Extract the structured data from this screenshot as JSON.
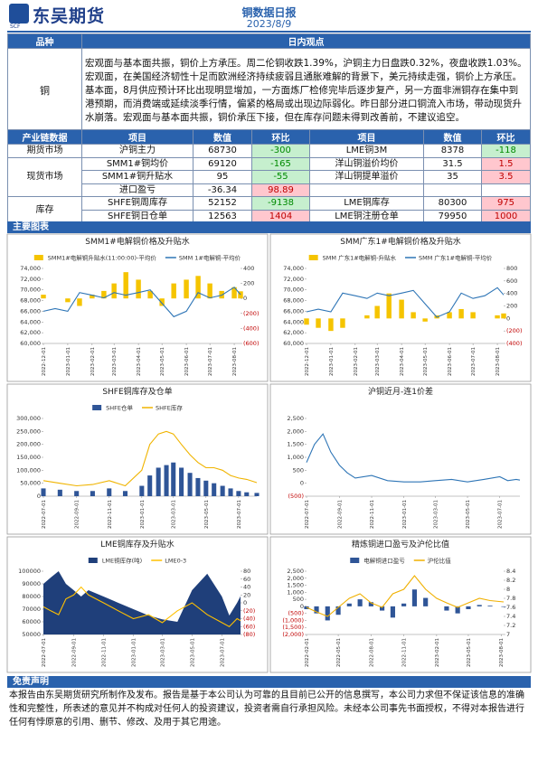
{
  "header": {
    "logo": "东吴期货",
    "logo_sub": "SCF",
    "title": "铜数据日报",
    "date": "2023/8/9"
  },
  "view_table": {
    "headers": [
      "品种",
      "日内观点"
    ],
    "rows": [
      [
        "铜",
        "宏观面与基本面共振，铜价上方承压。周二伦铜收跌1.39%，沪铜主力日盘跌0.32%，夜盘收跌1.03%。宏观面，在美国经济韧性十足而欧洲经济持续疲弱且通胀难解的背景下，美元持续走强，铜价上方承压。基本面，8月供应预计环比出现明显增加，一方面炼厂检修完毕后逐步复产，另一方面非洲铜存在集中到港预期，而消费端或延续淡季行情，偏紧的格局或出现边际弱化。昨日部分进口铜流入市场，带动现货升水崩落。宏观面与基本面共振，铜价承压下接，但在库存问题未得到改善前，不建议追空。"
      ]
    ]
  },
  "data_table": {
    "headers": [
      "产业链数据",
      "项目",
      "数值",
      "环比",
      "项目",
      "数值",
      "环比"
    ],
    "up_color": "#c00000",
    "up_bg": "#ffc7ce",
    "down_color": "#008a00",
    "down_bg": "#c6efce",
    "groups": [
      {
        "name": "期货市场",
        "rows": [
          [
            "沪铜主力",
            68730,
            -300,
            "LME铜3M",
            8378,
            -118
          ]
        ]
      },
      {
        "name": "现货市场",
        "rows": [
          [
            "SMM1#铜均价",
            69120,
            -165,
            "洋山铜溢价均价",
            31.5,
            1.5
          ],
          [
            "SMM1#铜升贴水",
            95,
            -55,
            "洋山铜提单溢价",
            35,
            3.5
          ],
          [
            "进口盈亏",
            -36.34,
            98.89
          ]
        ]
      },
      {
        "name": "库存",
        "rows": [
          [
            "SHFE铜周库存",
            52152,
            -9138,
            "LME铜库存",
            80300,
            975
          ],
          [
            "SHFE铜日仓单",
            12563,
            1404,
            "LME铜注册仓单",
            79950,
            1000
          ]
        ]
      }
    ]
  },
  "section_title": "主要图表",
  "chart_data": [
    {
      "type": "combo",
      "title": "SMM1#电解铜价格及升贴水",
      "x": [
        "2022-12-01",
        "2022-12-16",
        "2023-01-01",
        "2023-01-16",
        "2023-02-01",
        "2023-02-16",
        "2023-03-01",
        "2023-03-16",
        "2023-04-01",
        "2023-04-16",
        "2023-05-01",
        "2023-05-16",
        "2023-06-01",
        "2023-06-16",
        "2023-07-01",
        "2023-07-16",
        "2023-08-01",
        "2023-08-09"
      ],
      "xlim": [
        "2022-12-01",
        "2023-08-09"
      ],
      "xticks": [
        "2022-12-01",
        "2023-01-01",
        "2023-02-01",
        "2023-03-01",
        "2023-04-01",
        "2023-05-01",
        "2023-06-01",
        "2023-07-01",
        "2023-08-01"
      ],
      "series": [
        {
          "name": "SMM1#电解铜升贴水(11:00:00)-平均价",
          "type": "bar",
          "axis": "y2",
          "color": "#f5c400",
          "values": [
            50,
            0,
            -50,
            -100,
            50,
            100,
            200,
            350,
            250,
            100,
            -100,
            200,
            250,
            300,
            200,
            100,
            150,
            95
          ]
        },
        {
          "name": "SMM 1#电解铜-平均价",
          "type": "line",
          "color": "#2e75b6",
          "values": [
            66000,
            66500,
            66000,
            69500,
            69000,
            68500,
            69500,
            69000,
            69500,
            70000,
            67500,
            65000,
            66000,
            69500,
            68500,
            69000,
            70500,
            69120
          ]
        }
      ],
      "ylim": [
        60000,
        74000
      ],
      "yticks": [
        {
          "value": 60000,
          "label": "60,000"
        },
        {
          "value": 62000,
          "label": "62,000"
        },
        {
          "value": 64000,
          "label": "64,000"
        },
        {
          "value": 66000,
          "label": "66,000"
        },
        {
          "value": 68000,
          "label": "68,000"
        },
        {
          "value": 70000,
          "label": "70,000"
        },
        {
          "value": 72000,
          "label": "72,000"
        },
        {
          "value": 74000,
          "label": "74,000"
        }
      ],
      "y2lim": [
        -600,
        400
      ],
      "y2ticks": [
        {
          "value": -600,
          "label": "(600)"
        },
        {
          "value": -400,
          "label": "(400)"
        },
        {
          "value": -200,
          "label": "(200)"
        },
        0,
        200,
        400
      ]
    },
    {
      "type": "combo",
      "title": "SMM广东1#电解铜价格及升贴水",
      "x": [
        "2022-12-01",
        "2022-12-16",
        "2023-01-01",
        "2023-01-16",
        "2023-02-01",
        "2023-02-16",
        "2023-03-01",
        "2023-03-16",
        "2023-04-01",
        "2023-04-16",
        "2023-05-01",
        "2023-05-16",
        "2023-06-01",
        "2023-06-16",
        "2023-07-01",
        "2023-07-16",
        "2023-08-01",
        "2023-08-09"
      ],
      "xlim": [
        "2022-12-01",
        "2023-08-09"
      ],
      "xticks": [
        "2022-12-01",
        "2023-01-01",
        "2023-02-01",
        "2023-03-01",
        "2023-04-01",
        "2023-05-01",
        "2023-06-01",
        "2023-07-01",
        "2023-08-01"
      ],
      "series": [
        {
          "name": "SMM 广东1#电解铜-升贴水",
          "type": "bar",
          "axis": "y2",
          "color": "#f5c400",
          "values": [
            -100,
            -150,
            -200,
            -150,
            0,
            50,
            200,
            400,
            300,
            100,
            -50,
            50,
            100,
            150,
            100,
            0,
            50,
            80
          ]
        },
        {
          "name": "SMM 广东1#电解铜-平均价",
          "type": "line",
          "color": "#2e75b6",
          "values": [
            65900,
            66400,
            65900,
            69400,
            68900,
            68400,
            69400,
            68900,
            69400,
            69900,
            67400,
            64900,
            65900,
            69400,
            68400,
            68900,
            70400,
            69050
          ]
        }
      ],
      "ylim": [
        60000,
        74000
      ],
      "yticks": [
        {
          "value": 60000,
          "label": "60,000"
        },
        {
          "value": 62000,
          "label": "62,000"
        },
        {
          "value": 64000,
          "label": "64,000"
        },
        {
          "value": 66000,
          "label": "66,000"
        },
        {
          "value": 68000,
          "label": "68,000"
        },
        {
          "value": 70000,
          "label": "70,000"
        },
        {
          "value": 72000,
          "label": "72,000"
        },
        {
          "value": 74000,
          "label": "74,000"
        }
      ],
      "y2lim": [
        -400,
        800
      ],
      "y2ticks": [
        {
          "value": -400,
          "label": "(400)"
        },
        {
          "value": -200,
          "label": "(200)"
        },
        0,
        200,
        400,
        600,
        800
      ]
    },
    {
      "type": "combo",
      "title": "SHFE铜库存及仓单",
      "x": [
        "2022-07-01",
        "2022-08-01",
        "2022-09-01",
        "2022-10-01",
        "2022-11-01",
        "2022-12-01",
        "2023-01-01",
        "2023-01-16",
        "2023-02-01",
        "2023-02-16",
        "2023-03-01",
        "2023-03-16",
        "2023-04-01",
        "2023-04-16",
        "2023-05-01",
        "2023-05-16",
        "2023-06-01",
        "2023-06-16",
        "2023-07-01",
        "2023-07-16",
        "2023-08-04"
      ],
      "xlim": [
        "2022-07-01",
        "2023-08-04"
      ],
      "xticks": [
        "2022-07-01",
        "2022-09-01",
        "2022-11-01",
        "2023-01-01",
        "2023-03-01",
        "2023-05-01",
        "2023-07-01"
      ],
      "series": [
        {
          "name": "SHFE仓单",
          "type": "bar",
          "color": "#2f5597",
          "values": [
            30000,
            25000,
            20000,
            20000,
            30000,
            20000,
            40000,
            80000,
            110000,
            120000,
            130000,
            110000,
            90000,
            70000,
            60000,
            50000,
            40000,
            30000,
            20000,
            15000,
            12563
          ]
        },
        {
          "name": "SHFE库存",
          "type": "line",
          "color": "#f0b400",
          "values": [
            60000,
            50000,
            40000,
            45000,
            60000,
            40000,
            100000,
            200000,
            240000,
            250000,
            240000,
            200000,
            160000,
            130000,
            110000,
            110000,
            100000,
            80000,
            70000,
            65000,
            52152
          ]
        }
      ],
      "ylim": [
        0,
        300000
      ],
      "yticks": [
        0,
        {
          "value": 50000,
          "label": "50,000"
        },
        {
          "value": 100000,
          "label": "100,000"
        },
        {
          "value": 150000,
          "label": "150,000"
        },
        {
          "value": 200000,
          "label": "200,000"
        },
        {
          "value": 250000,
          "label": "250,000"
        },
        {
          "value": 300000,
          "label": "300,000"
        }
      ]
    },
    {
      "type": "line",
      "title": "沪铜近月-连1价差",
      "x": [
        "2022-07-01",
        "2022-07-16",
        "2022-08-01",
        "2022-08-16",
        "2022-09-01",
        "2022-09-16",
        "2022-10-01",
        "2022-11-01",
        "2022-12-01",
        "2023-01-01",
        "2023-02-01",
        "2023-03-01",
        "2023-04-01",
        "2023-05-01",
        "2023-06-01",
        "2023-07-01",
        "2023-07-16",
        "2023-08-01",
        "2023-08-08"
      ],
      "xlim": [
        "2022-07-01",
        "2023-08-08"
      ],
      "xticks": [
        "2022-07-01",
        "2022-09-01",
        "2022-11-01",
        "2023-01-01",
        "2023-03-01",
        "2023-05-01",
        "2023-07-01"
      ],
      "color": "#2e75b6",
      "values": [
        800,
        1500,
        1900,
        1200,
        700,
        400,
        200,
        300,
        100,
        50,
        50,
        100,
        150,
        50,
        150,
        250,
        100,
        150,
        120
      ],
      "ylim": [
        -500,
        2500
      ],
      "yticks": [
        {
          "value": -500,
          "label": "(500)"
        },
        0,
        500,
        {
          "value": 1000,
          "label": "1,000"
        },
        {
          "value": 1500,
          "label": "1,500"
        },
        {
          "value": 2000,
          "label": "2,000"
        },
        {
          "value": 2500,
          "label": "2,500"
        }
      ]
    },
    {
      "type": "combo",
      "title": "LME铜库存及升贴水",
      "x": [
        "2022-07-01",
        "2022-07-16",
        "2022-08-01",
        "2022-08-16",
        "2022-09-01",
        "2022-09-16",
        "2022-10-01",
        "2022-11-01",
        "2022-12-01",
        "2023-01-01",
        "2023-02-01",
        "2023-03-01",
        "2023-04-01",
        "2023-05-01",
        "2023-06-01",
        "2023-07-01",
        "2023-07-16",
        "2023-08-01",
        "2023-08-08"
      ],
      "xlim": [
        "2022-07-01",
        "2023-08-08"
      ],
      "xticks": [
        "2022-07-01",
        "2022-09-01",
        "2022-11-01",
        "2023-01-01",
        "2023-03-01",
        "2023-05-01",
        "2023-07-01"
      ],
      "series": [
        {
          "name": "LME铜库存(吨)",
          "type": "area",
          "color": "#1f3f7a",
          "values": [
            90000,
            95000,
            100000,
            90000,
            85000,
            80000,
            85000,
            80000,
            75000,
            70000,
            65000,
            62000,
            60000,
            85000,
            98000,
            80000,
            65000,
            75000,
            80300
          ]
        },
        {
          "name": "LME0-3",
          "type": "line",
          "axis": "y2",
          "color": "#ffc000",
          "values": [
            -10,
            -20,
            -30,
            10,
            20,
            40,
            20,
            0,
            -20,
            -40,
            -30,
            -50,
            -20,
            0,
            -30,
            -50,
            -60,
            -40,
            -45
          ]
        }
      ],
      "ylim": [
        50000,
        100000
      ],
      "yticks": [
        {
          "value": 50000,
          "label": "50000"
        },
        {
          "value": 60000,
          "label": "60000"
        },
        {
          "value": 70000,
          "label": "70000"
        },
        {
          "value": 80000,
          "label": "80000"
        },
        {
          "value": 90000,
          "label": "90000"
        },
        {
          "value": 100000,
          "label": "100000"
        }
      ],
      "y2lim": [
        -80,
        80
      ],
      "y2ticks": [
        {
          "value": -80,
          "label": "(80)"
        },
        {
          "value": -60,
          "label": "(60)"
        },
        {
          "value": -40,
          "label": "(40)"
        },
        {
          "value": -20,
          "label": "(20)"
        },
        0,
        20,
        40,
        60,
        80
      ]
    },
    {
      "type": "combo",
      "title": "精炼铜进口盈亏及沪伦比值",
      "x": [
        "2022-02-01",
        "2022-03-01",
        "2022-04-01",
        "2022-05-01",
        "2022-06-01",
        "2022-07-01",
        "2022-08-01",
        "2022-09-01",
        "2022-10-01",
        "2022-11-01",
        "2022-12-01",
        "2023-01-01",
        "2023-02-01",
        "2023-03-01",
        "2023-04-01",
        "2023-05-01",
        "2023-06-01",
        "2023-07-01",
        "2023-08-08"
      ],
      "xlim": [
        "2022-02-01",
        "2023-08-08"
      ],
      "xticks": [
        "2022-02-01",
        "2022-05-01",
        "2022-08-01",
        "2022-11-01",
        "2023-02-01",
        "2023-05-01",
        "2023-08-01"
      ],
      "series": [
        {
          "name": "电解铜进口盈亏",
          "type": "bar",
          "color": "#2f5597",
          "values": [
            -200,
            -500,
            -1000,
            -600,
            200,
            500,
            300,
            -300,
            -800,
            200,
            1200,
            600,
            0,
            -300,
            -500,
            -200,
            100,
            50,
            -36
          ]
        },
        {
          "name": "沪伦比值",
          "type": "line",
          "axis": "y2",
          "color": "#f0b000",
          "values": [
            7.6,
            7.5,
            7.4,
            7.6,
            7.8,
            7.9,
            7.7,
            7.6,
            7.9,
            8.0,
            8.3,
            8.0,
            7.8,
            7.7,
            7.6,
            7.7,
            7.8,
            7.75,
            7.72
          ]
        }
      ],
      "ylim": [
        -2000,
        2500
      ],
      "yticks": [
        {
          "value": -2000,
          "label": "(2,000)"
        },
        {
          "value": -1500,
          "label": "(1,500)"
        },
        {
          "value": -1000,
          "label": "(1,000)"
        },
        {
          "value": -500,
          "label": "(500)"
        },
        0,
        500,
        {
          "value": 1000,
          "label": "1,000"
        },
        {
          "value": 1500,
          "label": "1,500"
        },
        {
          "value": 2000,
          "label": "2,000"
        },
        {
          "value": 2500,
          "label": "2,500"
        }
      ],
      "y2lim": [
        7,
        8.4
      ],
      "y2ticks": [
        7,
        7.2,
        7.4,
        7.6,
        7.8,
        8,
        8.2,
        8.4
      ]
    }
  ],
  "disclaimer": {
    "title": "免责声明",
    "text": "本报告由东吴期货研究所制作及发布。报告是基于本公司认为可靠的且目前已公开的信息撰写，本公司力求但不保证该信息的准确性和完整性，所表述的意见并不构成对任何人的投资建议，投资者需自行承担风险。未经本公司事先书面授权，不得对本报告进行任何有悖原意的引用、删节、修改、及用于其它用途。"
  }
}
